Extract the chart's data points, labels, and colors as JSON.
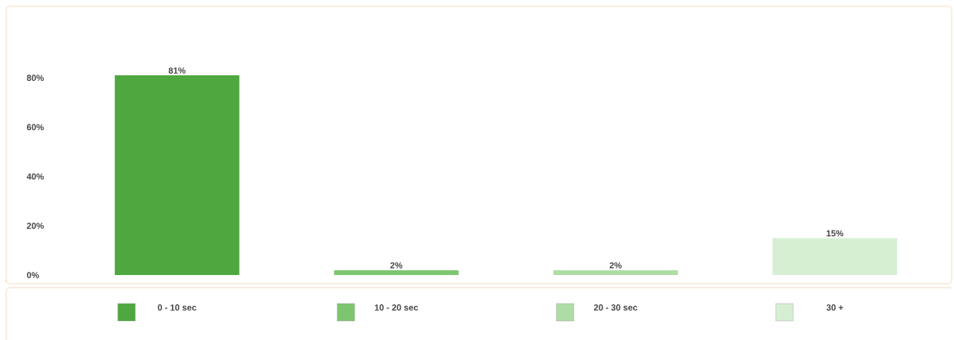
{
  "chart_data": {
    "type": "bar",
    "categories": [
      "0 - 10 sec",
      "10 - 20 sec",
      "20 - 30 sec",
      "30 +"
    ],
    "values": [
      81,
      2,
      2,
      15
    ],
    "colors": [
      "#4ea83f",
      "#7dc66f",
      "#aedda4",
      "#d6efd3"
    ],
    "value_labels": [
      "81%",
      "2%",
      "2%",
      "15%"
    ],
    "ylim": [
      -3.5,
      109
    ],
    "yticks": [
      {
        "value": 0,
        "label": "0%"
      },
      {
        "value": 20,
        "label": "20%"
      },
      {
        "value": 40,
        "label": "40%"
      },
      {
        "value": 60,
        "label": "60%"
      },
      {
        "value": 80,
        "label": "80%"
      }
    ],
    "grid": false
  }
}
